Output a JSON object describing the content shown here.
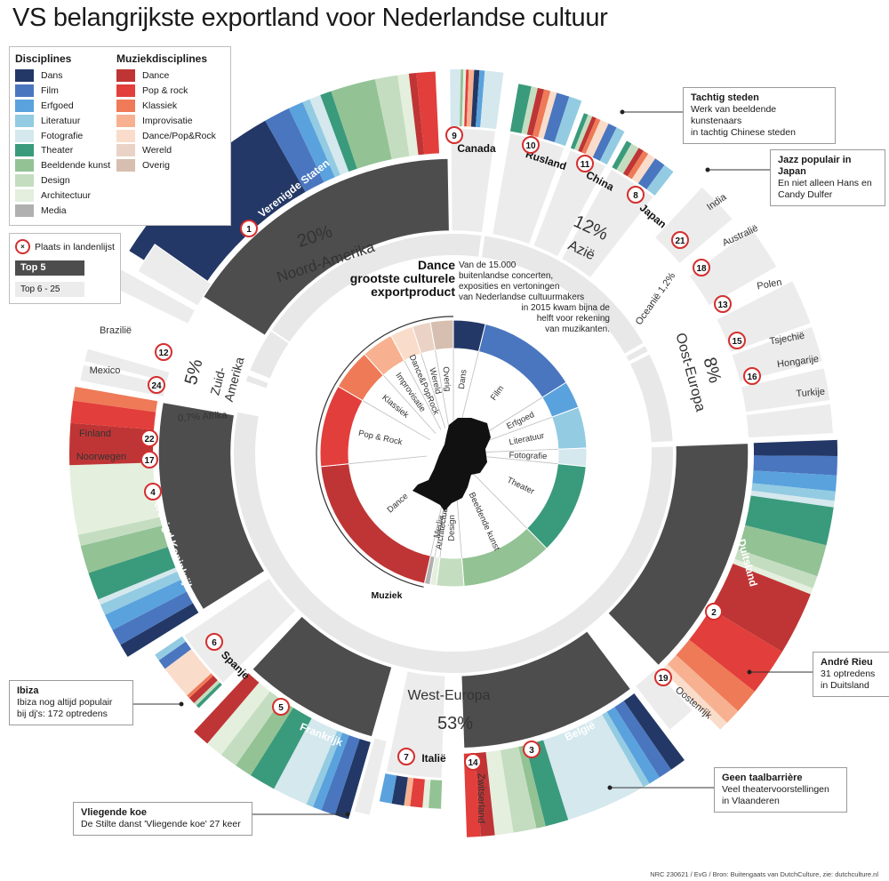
{
  "title": "VS belangrijkste exportland voor Nederlandse cultuur",
  "legend": {
    "disciplines_title": "Disciplines",
    "disciplines": [
      {
        "label": "Dans",
        "color": "#233866"
      },
      {
        "label": "Film",
        "color": "#4a76bf"
      },
      {
        "label": "Erfgoed",
        "color": "#5aa2dd"
      },
      {
        "label": "Literatuur",
        "color": "#93cbe2"
      },
      {
        "label": "Fotografie",
        "color": "#d4e8ee"
      },
      {
        "label": "Theater",
        "color": "#3a9a7c"
      },
      {
        "label": "Beeldende kunst",
        "color": "#93c294"
      },
      {
        "label": "Design",
        "color": "#c4ddc0"
      },
      {
        "label": "Architectuur",
        "color": "#e4efde"
      },
      {
        "label": "Media",
        "color": "#b0b0b0"
      }
    ],
    "muziek_title": "Muziekdisciplines",
    "muziek": [
      {
        "label": "Dance",
        "color": "#bf3535"
      },
      {
        "label": "Pop & rock",
        "color": "#e23e3b"
      },
      {
        "label": "Klassiek",
        "color": "#ee7a57"
      },
      {
        "label": "Improvisatie",
        "color": "#f7b190"
      },
      {
        "label": "Dance/Pop&Rock",
        "color": "#fadccb"
      },
      {
        "label": "Wereld",
        "color": "#ead3c6"
      },
      {
        "label": "Overig",
        "color": "#d6bfb0"
      }
    ]
  },
  "key": {
    "place_label": "Plaats in landenlijst",
    "top5": "Top 5",
    "top6": "Top 6 - 25"
  },
  "center_text": {
    "heading": [
      "Dance",
      "grootste culturele",
      "exportproduct"
    ],
    "body": [
      "Van de 15.000",
      "buitenlandse concerten,",
      "exposities en vertoningen",
      "van Nederlandse cultuurmakers",
      "in 2015 kwam bijna de",
      "helft voor rekening",
      "van muzikanten."
    ],
    "muziek_label": "Muziek"
  },
  "callouts": {
    "tachtig": {
      "title": "Tachtig steden",
      "text": [
        "Werk van beeldende kunstenaars",
        "in tachtig Chinese steden"
      ]
    },
    "jazz": {
      "title": "Jazz populair in Japan",
      "text": [
        "En niet alleen Hans en",
        "Candy Dulfer"
      ]
    },
    "rieu": {
      "title": "André Rieu",
      "text": [
        "31 optredens",
        "in Duitsland"
      ]
    },
    "ibiza": {
      "title": "Ibiza",
      "text": [
        "Ibiza nog altijd populair",
        "bij dj's: 172 optredens"
      ]
    },
    "koe": {
      "title": "Vliegende koe",
      "text": [
        "De Stilte danst 'Vliegende koe' 27 keer"
      ]
    },
    "taal": {
      "title": "Geen taalbarrière",
      "text": [
        "Veel theatervoorstellingen",
        "in Vlaanderen"
      ]
    }
  },
  "source": "NRC 230621 / EvG / Bron: Buitengaats van DutchCulture, zie: dutchculture.nl",
  "chart_data": {
    "type": "sunburst",
    "regions": [
      {
        "name": "Noord-Amerika",
        "share": "20%"
      },
      {
        "name": "Azië",
        "share": "12%"
      },
      {
        "name": "Oceanië",
        "share": "1,2%"
      },
      {
        "name": "Oost-Europa",
        "share": "8%"
      },
      {
        "name": "West-Europa",
        "share": "53%"
      },
      {
        "name": "Afrika",
        "share": "0,7%"
      },
      {
        "name": "Zuid-Amerika",
        "share": "5%"
      }
    ],
    "countries": [
      {
        "name": "Verenigde Staten",
        "rank": 1
      },
      {
        "name": "Canada",
        "rank": 9
      },
      {
        "name": "Rusland",
        "rank": 10
      },
      {
        "name": "China",
        "rank": 11
      },
      {
        "name": "Japan",
        "rank": 8
      },
      {
        "name": "India",
        "rank": null
      },
      {
        "name": "Australië",
        "rank": 21
      },
      {
        "name": "Polen",
        "rank": 18
      },
      {
        "name": "Tsjechië",
        "rank": 13
      },
      {
        "name": "Hongarije",
        "rank": 15
      },
      {
        "name": "Turkije",
        "rank": 16
      },
      {
        "name": "Duitsland",
        "rank": 2
      },
      {
        "name": "Oostenrijk",
        "rank": 19
      },
      {
        "name": "België",
        "rank": 3
      },
      {
        "name": "Zwitserland",
        "rank": 14
      },
      {
        "name": "Italië",
        "rank": 7
      },
      {
        "name": "Frankrijk",
        "rank": 5
      },
      {
        "name": "Spanje",
        "rank": 6
      },
      {
        "name": "Verenigd Koninkrijk",
        "rank": 4
      },
      {
        "name": "Noorwegen",
        "rank": 17
      },
      {
        "name": "Finland",
        "rank": 22
      },
      {
        "name": "Mexico",
        "rank": 24
      },
      {
        "name": "Brazilië",
        "rank": 12
      }
    ],
    "disciplines_total": [
      {
        "name": "Dans",
        "value": 3.5
      },
      {
        "name": "Film",
        "value": 11
      },
      {
        "name": "Erfgoed",
        "value": 3
      },
      {
        "name": "Literatuur",
        "value": 4.5
      },
      {
        "name": "Fotografie",
        "value": 2
      },
      {
        "name": "Theater",
        "value": 10
      },
      {
        "name": "Beeldende kunst",
        "value": 10
      },
      {
        "name": "Design",
        "value": 3
      },
      {
        "name": "Architectuur",
        "value": 0.7
      },
      {
        "name": "Media",
        "value": 0.6
      },
      {
        "name": "Dance",
        "value": 18
      },
      {
        "name": "Pop & Rock",
        "value": 9
      },
      {
        "name": "Klassiek",
        "value": 4.5
      },
      {
        "name": "Improvisatie",
        "value": 3.5
      },
      {
        "name": "Dance&PopRock",
        "value": 2.5
      },
      {
        "name": "Wereld",
        "value": 2
      },
      {
        "name": "Overig",
        "value": 2.5
      }
    ]
  }
}
